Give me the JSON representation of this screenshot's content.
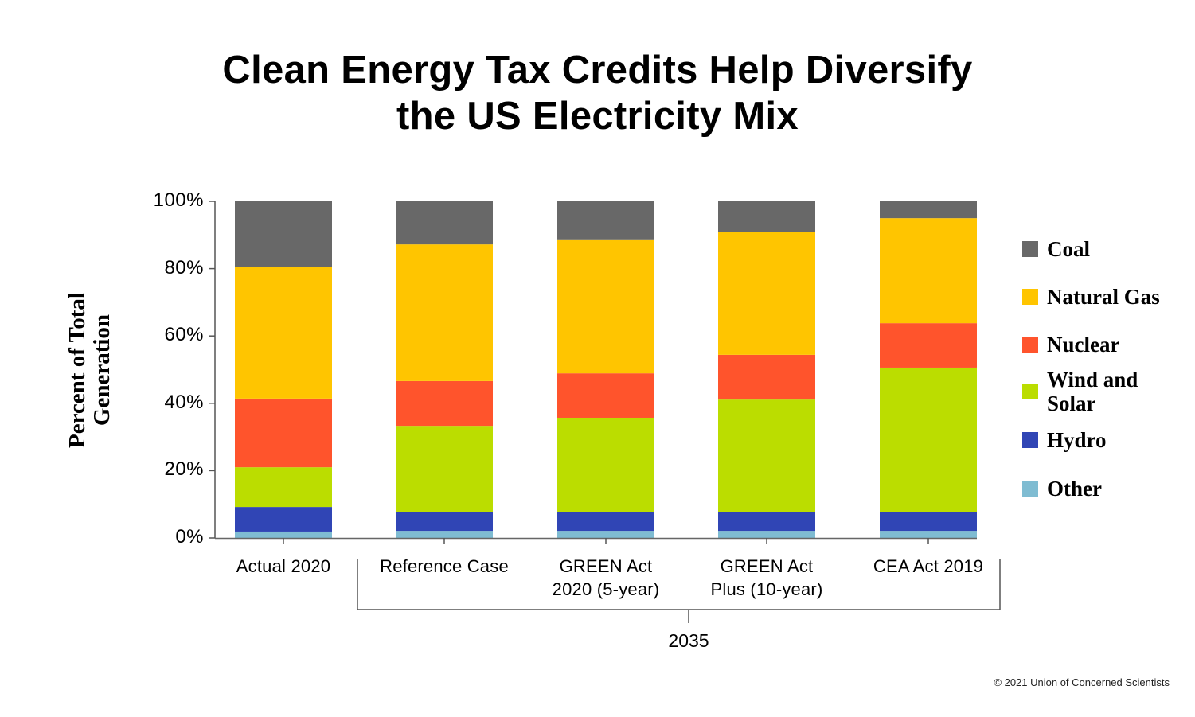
{
  "chart_data": {
    "type": "bar",
    "stacked": true,
    "title": "Clean Energy Tax Credits Help Diversify the US Electricity Mix",
    "title_lines": [
      "Clean Energy Tax Credits Help Diversify",
      "the US Electricity Mix"
    ],
    "xlabel": "",
    "ylabel": "Percent of Total Generation",
    "ylabel_lines": [
      "Percent of Total",
      "Generation"
    ],
    "ylim": [
      0,
      100
    ],
    "yticks": [
      0,
      20,
      40,
      60,
      80,
      100
    ],
    "ytick_labels": [
      "0%",
      "20%",
      "40%",
      "60%",
      "80%",
      "100%"
    ],
    "grid": false,
    "categories": [
      "Actual 2020",
      "Reference Case",
      "GREEN Act 2020 (5-year)",
      "GREEN Act Plus (10-year)",
      "CEA Act 2019"
    ],
    "category_label_lines": [
      [
        "Actual 2020"
      ],
      [
        "Reference Case"
      ],
      [
        "GREEN Act",
        "2020 (5-year)"
      ],
      [
        "GREEN Act",
        "Plus (10-year)"
      ],
      [
        "CEA Act 2019"
      ]
    ],
    "group_annotation": {
      "label": "2035",
      "categories": [
        "Reference Case",
        "GREEN Act 2020 (5-year)",
        "GREEN Act Plus (10-year)",
        "CEA Act 2019"
      ]
    },
    "series": [
      {
        "name": "Other",
        "color": "#7fbcd2",
        "values": [
          1.9,
          2.1,
          2.1,
          2.1,
          2.1
        ]
      },
      {
        "name": "Hydro",
        "color": "#3045b5",
        "values": [
          7.3,
          5.7,
          5.7,
          5.7,
          5.7
        ]
      },
      {
        "name": "Wind and Solar",
        "color": "#bbdd00",
        "values": [
          11.8,
          25.5,
          27.9,
          33.3,
          42.8
        ]
      },
      {
        "name": "Nuclear",
        "color": "#ff542c",
        "values": [
          20.4,
          13.3,
          13.2,
          13.3,
          13.2
        ]
      },
      {
        "name": "Natural Gas",
        "color": "#ffc500",
        "values": [
          39.0,
          40.6,
          39.8,
          36.4,
          31.2
        ]
      },
      {
        "name": "Coal",
        "color": "#686868",
        "values": [
          19.6,
          12.8,
          11.3,
          9.2,
          5.0
        ]
      }
    ],
    "legend": {
      "placement": "right",
      "order": [
        "Coal",
        "Natural Gas",
        "Nuclear",
        "Wind and Solar",
        "Hydro",
        "Other"
      ],
      "items": [
        {
          "label": "Coal",
          "color": "#686868",
          "lines": [
            "Coal"
          ]
        },
        {
          "label": "Natural Gas",
          "color": "#ffc500",
          "lines": [
            "Natural Gas"
          ]
        },
        {
          "label": "Nuclear",
          "color": "#ff542c",
          "lines": [
            "Nuclear"
          ]
        },
        {
          "label": "Wind and Solar",
          "color": "#bbdd00",
          "lines": [
            "Wind and",
            "Solar"
          ]
        },
        {
          "label": "Hydro",
          "color": "#3045b5",
          "lines": [
            "Hydro"
          ]
        },
        {
          "label": "Other",
          "color": "#7fbcd2",
          "lines": [
            "Other"
          ]
        }
      ]
    },
    "source": "© 2021 Union of Concerned Scientists"
  }
}
